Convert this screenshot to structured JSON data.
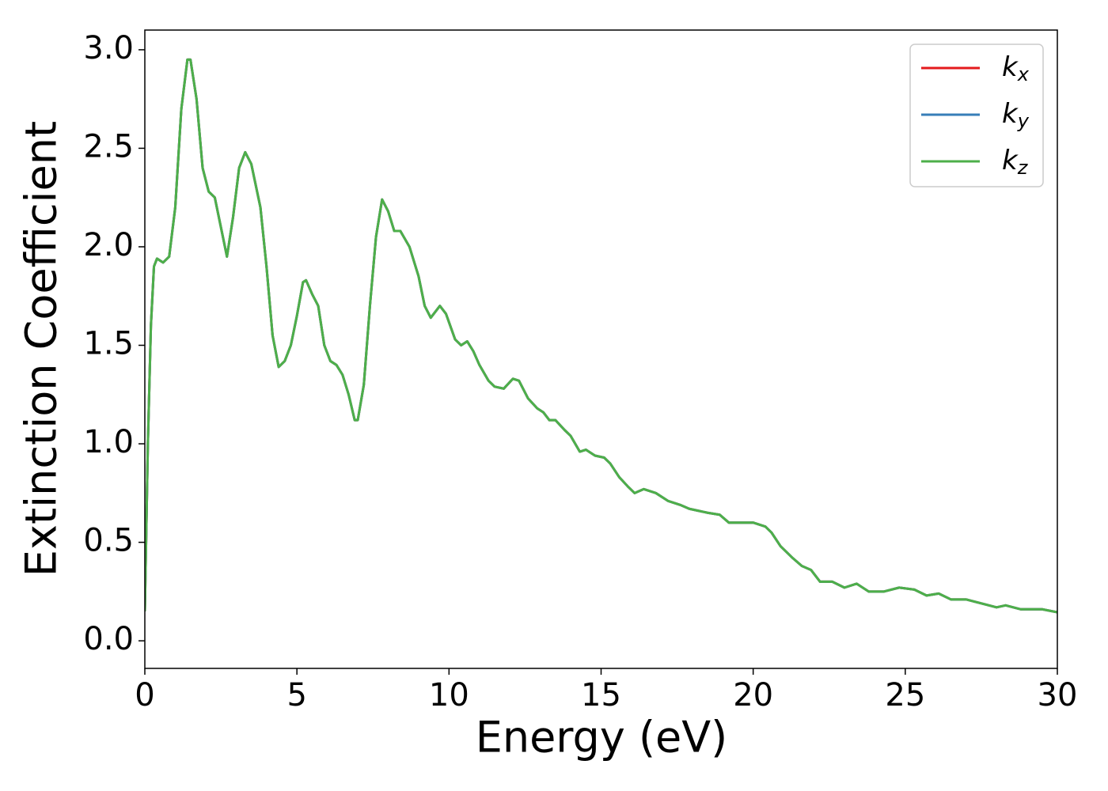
{
  "chart_data": {
    "type": "line",
    "xlabel": "Energy (eV)",
    "ylabel": "Extinction Coefficient",
    "x": [
      0.0,
      0.1,
      0.2,
      0.3,
      0.4,
      0.6,
      0.8,
      1.0,
      1.2,
      1.4,
      1.5,
      1.7,
      1.9,
      2.1,
      2.3,
      2.5,
      2.7,
      2.9,
      3.1,
      3.3,
      3.5,
      3.8,
      4.0,
      4.2,
      4.4,
      4.6,
      4.8,
      5.0,
      5.2,
      5.3,
      5.5,
      5.7,
      5.9,
      6.1,
      6.3,
      6.5,
      6.7,
      6.9,
      7.0,
      7.2,
      7.4,
      7.6,
      7.8,
      8.0,
      8.2,
      8.4,
      8.7,
      9.0,
      9.2,
      9.4,
      9.7,
      9.9,
      10.2,
      10.4,
      10.6,
      10.8,
      11.0,
      11.3,
      11.5,
      11.8,
      12.1,
      12.3,
      12.6,
      12.9,
      13.1,
      13.3,
      13.5,
      13.8,
      14.0,
      14.3,
      14.5,
      14.8,
      15.1,
      15.3,
      15.6,
      15.9,
      16.1,
      16.4,
      16.8,
      17.2,
      17.6,
      17.9,
      18.2,
      18.5,
      18.9,
      19.2,
      19.6,
      20.0,
      20.4,
      20.6,
      20.9,
      21.3,
      21.6,
      21.9,
      22.2,
      22.6,
      23.0,
      23.4,
      23.8,
      24.3,
      24.8,
      25.3,
      25.7,
      26.1,
      26.5,
      27.0,
      27.5,
      28.0,
      28.3,
      28.8,
      29.5,
      30.0
    ],
    "series": [
      {
        "name": "kx",
        "color": "#e41a1c",
        "values": [
          0.15,
          1.0,
          1.6,
          1.9,
          1.94,
          1.92,
          1.95,
          2.2,
          2.7,
          2.95,
          2.95,
          2.75,
          2.4,
          2.28,
          2.25,
          2.1,
          1.95,
          2.15,
          2.4,
          2.48,
          2.42,
          2.2,
          1.9,
          1.55,
          1.39,
          1.42,
          1.5,
          1.65,
          1.82,
          1.83,
          1.76,
          1.7,
          1.5,
          1.42,
          1.4,
          1.35,
          1.25,
          1.12,
          1.12,
          1.3,
          1.7,
          2.05,
          2.24,
          2.18,
          2.08,
          2.08,
          2.0,
          1.85,
          1.7,
          1.64,
          1.7,
          1.66,
          1.53,
          1.5,
          1.52,
          1.47,
          1.4,
          1.32,
          1.29,
          1.28,
          1.33,
          1.32,
          1.23,
          1.18,
          1.16,
          1.12,
          1.12,
          1.07,
          1.04,
          0.96,
          0.97,
          0.94,
          0.93,
          0.9,
          0.83,
          0.78,
          0.75,
          0.77,
          0.75,
          0.71,
          0.69,
          0.67,
          0.66,
          0.65,
          0.64,
          0.6,
          0.6,
          0.6,
          0.58,
          0.55,
          0.48,
          0.42,
          0.38,
          0.36,
          0.3,
          0.3,
          0.27,
          0.29,
          0.25,
          0.25,
          0.27,
          0.26,
          0.23,
          0.24,
          0.21,
          0.21,
          0.19,
          0.17,
          0.18,
          0.16,
          0.16,
          0.145
        ]
      },
      {
        "name": "ky",
        "color": "#377eb8",
        "values": [
          0.15,
          1.0,
          1.6,
          1.9,
          1.94,
          1.92,
          1.95,
          2.2,
          2.7,
          2.95,
          2.95,
          2.75,
          2.4,
          2.28,
          2.25,
          2.1,
          1.95,
          2.15,
          2.4,
          2.48,
          2.42,
          2.2,
          1.9,
          1.55,
          1.39,
          1.42,
          1.5,
          1.65,
          1.82,
          1.83,
          1.76,
          1.7,
          1.5,
          1.42,
          1.4,
          1.35,
          1.25,
          1.12,
          1.12,
          1.3,
          1.7,
          2.05,
          2.24,
          2.18,
          2.08,
          2.08,
          2.0,
          1.85,
          1.7,
          1.64,
          1.7,
          1.66,
          1.53,
          1.5,
          1.52,
          1.47,
          1.4,
          1.32,
          1.29,
          1.28,
          1.33,
          1.32,
          1.23,
          1.18,
          1.16,
          1.12,
          1.12,
          1.07,
          1.04,
          0.96,
          0.97,
          0.94,
          0.93,
          0.9,
          0.83,
          0.78,
          0.75,
          0.77,
          0.75,
          0.71,
          0.69,
          0.67,
          0.66,
          0.65,
          0.64,
          0.6,
          0.6,
          0.6,
          0.58,
          0.55,
          0.48,
          0.42,
          0.38,
          0.36,
          0.3,
          0.3,
          0.27,
          0.29,
          0.25,
          0.25,
          0.27,
          0.26,
          0.23,
          0.24,
          0.21,
          0.21,
          0.19,
          0.17,
          0.18,
          0.16,
          0.16,
          0.145
        ]
      },
      {
        "name": "kz",
        "color": "#4daf4a",
        "values": [
          0.15,
          1.0,
          1.6,
          1.9,
          1.94,
          1.92,
          1.95,
          2.2,
          2.7,
          2.95,
          2.95,
          2.75,
          2.4,
          2.28,
          2.25,
          2.1,
          1.95,
          2.15,
          2.4,
          2.48,
          2.42,
          2.2,
          1.9,
          1.55,
          1.39,
          1.42,
          1.5,
          1.65,
          1.82,
          1.83,
          1.76,
          1.7,
          1.5,
          1.42,
          1.4,
          1.35,
          1.25,
          1.12,
          1.12,
          1.3,
          1.7,
          2.05,
          2.24,
          2.18,
          2.08,
          2.08,
          2.0,
          1.85,
          1.7,
          1.64,
          1.7,
          1.66,
          1.53,
          1.5,
          1.52,
          1.47,
          1.4,
          1.32,
          1.29,
          1.28,
          1.33,
          1.32,
          1.23,
          1.18,
          1.16,
          1.12,
          1.12,
          1.07,
          1.04,
          0.96,
          0.97,
          0.94,
          0.93,
          0.9,
          0.83,
          0.78,
          0.75,
          0.77,
          0.75,
          0.71,
          0.69,
          0.67,
          0.66,
          0.65,
          0.64,
          0.6,
          0.6,
          0.6,
          0.58,
          0.55,
          0.48,
          0.42,
          0.38,
          0.36,
          0.3,
          0.3,
          0.27,
          0.29,
          0.25,
          0.25,
          0.27,
          0.26,
          0.23,
          0.24,
          0.21,
          0.21,
          0.19,
          0.17,
          0.18,
          0.16,
          0.16,
          0.145
        ]
      }
    ],
    "xlim": [
      0,
      30
    ],
    "xticks": [
      0,
      5,
      10,
      15,
      20,
      25,
      30
    ],
    "ylim": [
      -0.14,
      3.1
    ],
    "yticks": [
      {
        "value": 0,
        "label": "0.0"
      },
      0.5,
      {
        "value": 1,
        "label": "1.0"
      },
      1.5,
      {
        "value": 2,
        "label": "2.0"
      },
      2.5,
      {
        "value": 3,
        "label": "3.0"
      }
    ],
    "grid": false,
    "legend": "upper right"
  }
}
